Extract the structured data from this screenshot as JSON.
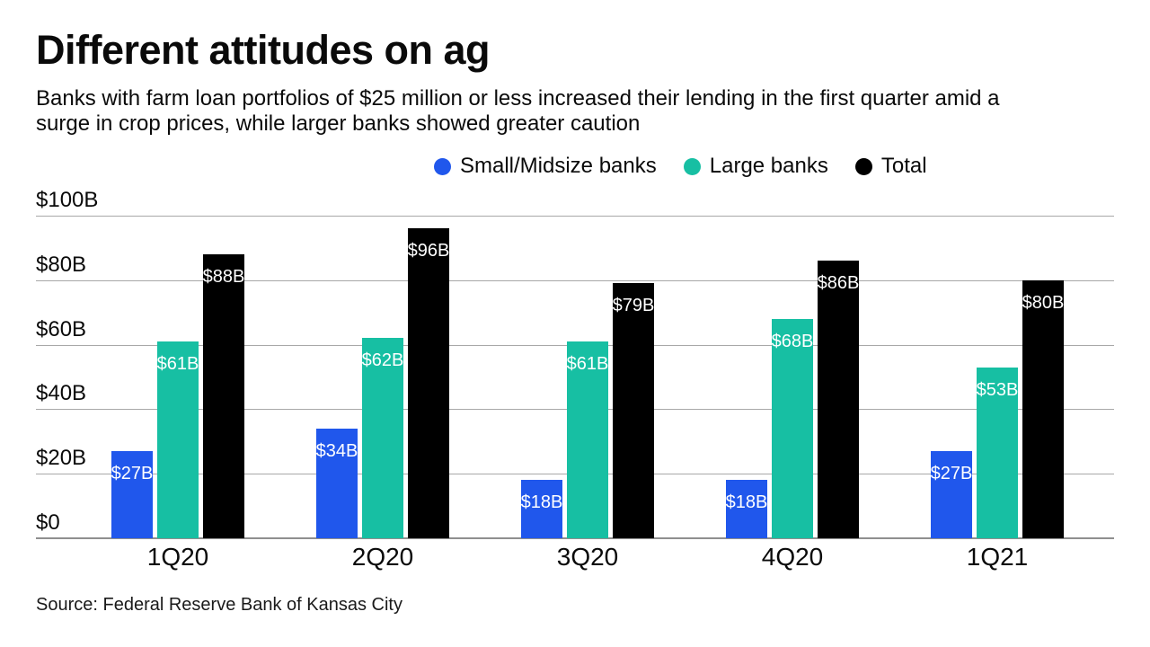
{
  "page": {
    "title": "Different attitudes on ag",
    "subtitle_lines": [
      "Banks with farm loan portfolios of $25 million or less increased their lending in the first quarter amid a",
      "surge in crop prices, while larger banks showed greater caution"
    ],
    "source": "Source: Federal Reserve Bank of Kansas City"
  },
  "legend": {
    "items": [
      {
        "label": "Small/Midsize banks",
        "color": "#2057ec"
      },
      {
        "label": "Large banks",
        "color": "#17bfa3"
      },
      {
        "label": "Total",
        "color": "#000000"
      }
    ]
  },
  "chart_data": {
    "type": "bar",
    "title": "Different attitudes on ag",
    "categories": [
      "1Q20",
      "2Q20",
      "3Q20",
      "4Q20",
      "1Q21"
    ],
    "series": [
      {
        "name": "Small/Midsize banks",
        "color": "#2057ec",
        "values": [
          27,
          34,
          18,
          18,
          27
        ],
        "labels": [
          "$27B",
          "$34B",
          "$18B",
          "$18B",
          "$27B"
        ]
      },
      {
        "name": "Large banks",
        "color": "#17bfa3",
        "values": [
          61,
          62,
          61,
          68,
          53
        ],
        "labels": [
          "$61B",
          "$62B",
          "$61B",
          "$68B",
          "$53B"
        ]
      },
      {
        "name": "Total",
        "color": "#000000",
        "values": [
          88,
          96,
          79,
          86,
          80
        ],
        "labels": [
          "$88B",
          "$96B",
          "$79B",
          "$86B",
          "$80B"
        ]
      }
    ],
    "xlabel": "",
    "ylabel": "",
    "ylim": [
      0,
      100
    ],
    "yticks": [
      {
        "value": 0,
        "label": "$0"
      },
      {
        "value": 20,
        "label": "$20B"
      },
      {
        "value": 40,
        "label": "$40B"
      },
      {
        "value": 60,
        "label": "$60B"
      },
      {
        "value": 80,
        "label": "$80B"
      },
      {
        "value": 100,
        "label": "$100B"
      }
    ],
    "grid": true,
    "legend_position": "top-center",
    "value_label_color": "#ffffff",
    "gridline_color": "#a8a8a8"
  }
}
